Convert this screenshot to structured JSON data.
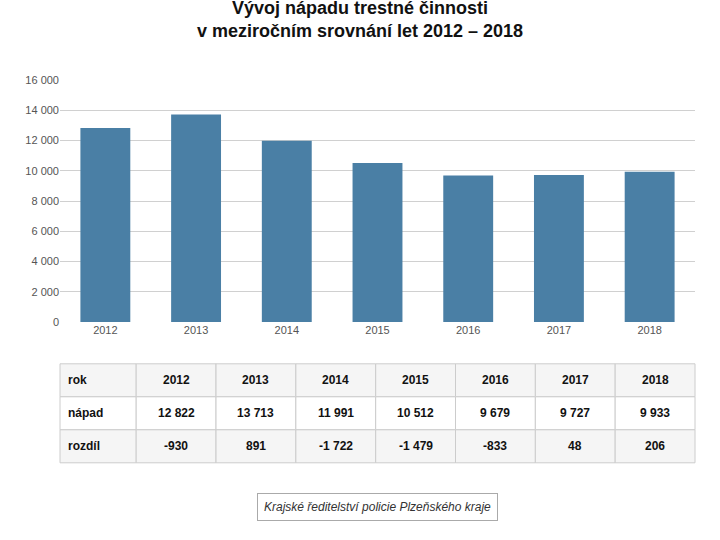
{
  "chart_data": {
    "type": "bar",
    "title": "Vývoj nápadu trestné činnosti",
    "subtitle": "v meziročním srovnání let 2012 – 2018",
    "categories": [
      "2012",
      "2013",
      "2014",
      "2015",
      "2016",
      "2017",
      "2018"
    ],
    "values": [
      12822,
      13713,
      11991,
      10512,
      9679,
      9727,
      9933
    ],
    "color": "#4a7fa5",
    "ylim": [
      0,
      16000
    ],
    "yticks": [
      0,
      {
        "value": 2000,
        "label": "2 000"
      },
      {
        "value": 4000,
        "label": "4 000"
      },
      {
        "value": 6000,
        "label": "6 000"
      },
      {
        "value": 8000,
        "label": "8 000"
      },
      {
        "value": 10000,
        "label": "10 000"
      },
      {
        "value": 12000,
        "label": "12 000"
      },
      {
        "value": 14000,
        "label": "14 000"
      },
      {
        "value": 16000,
        "label": "16 000"
      }
    ],
    "grid": true,
    "table": [
      {
        "label": "rok",
        "cells": [
          "2012",
          "2013",
          "2014",
          "2015",
          "2016",
          "2017",
          "2018"
        ]
      },
      {
        "label": "nápad",
        "cells": [
          "12 822",
          "13 713",
          "11 991",
          "10 512",
          "9 679",
          "9 727",
          "9 933"
        ]
      },
      {
        "label": "rozdíl",
        "cells": [
          "-930",
          "891",
          "-1 722",
          "-1 479",
          "-833",
          "48",
          "206"
        ]
      }
    ],
    "annotations": [
      "Krajské ředitelství policie Plzeňského kraje"
    ]
  }
}
